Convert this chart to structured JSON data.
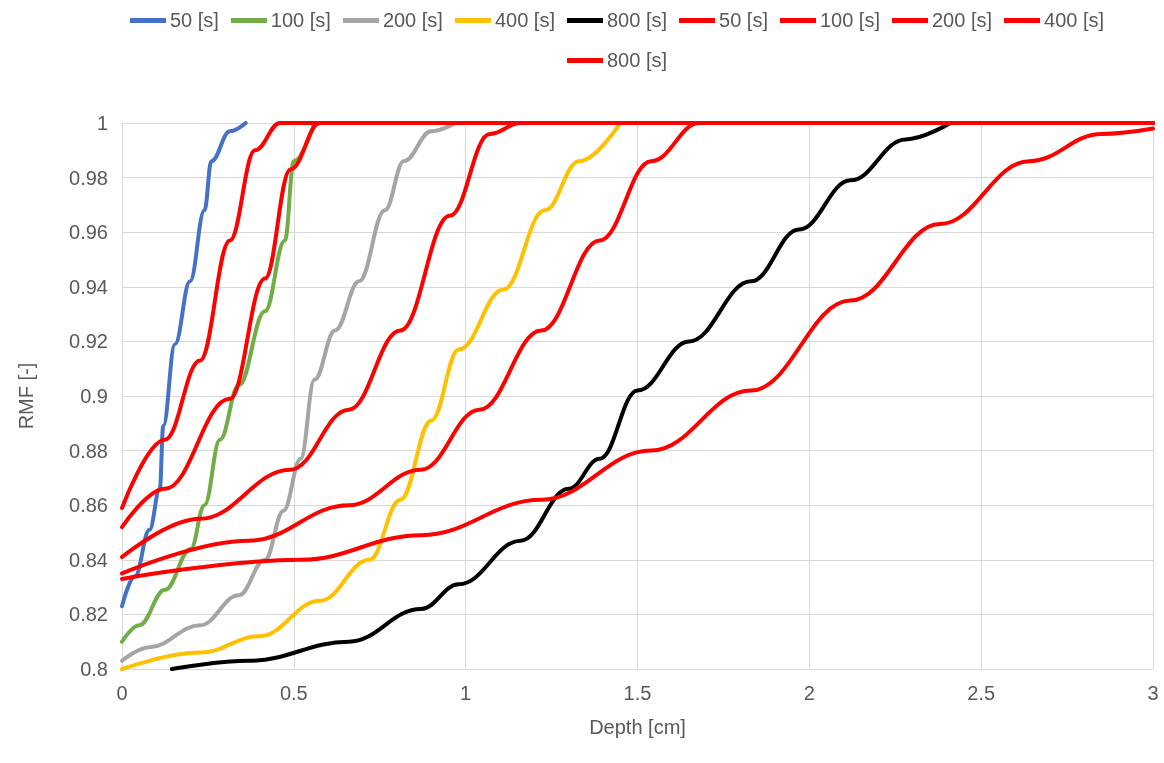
{
  "chart_data": {
    "type": "line",
    "xlabel": "Depth [cm]",
    "ylabel": "RMF [-]",
    "xlim": [
      0,
      3
    ],
    "xticks": [
      0,
      0.5,
      1,
      1.5,
      2,
      2.5,
      3
    ],
    "ylim": [
      0.8,
      1
    ],
    "yticks": [
      0.8,
      0.82,
      0.84,
      0.86,
      0.88,
      0.9,
      0.92,
      0.94,
      0.96,
      0.98,
      1
    ],
    "grid": true,
    "legend": "top",
    "marker": "none",
    "line_style": "solid",
    "series": [
      {
        "name": "50 [s]",
        "color": "#4472c4",
        "x": [
          0,
          0.038,
          0.08,
          0.11,
          0.12,
          0.154,
          0.198,
          0.24,
          0.26,
          0.314,
          0.36
        ],
        "values": [
          0.823,
          0.834,
          0.851,
          0.866,
          0.889,
          0.919,
          0.942,
          0.968,
          0.986,
          0.997,
          1
        ]
      },
      {
        "name": "100 [s]",
        "color": "#70ad47",
        "x": [
          0,
          0.05,
          0.125,
          0.2,
          0.24,
          0.285,
          0.34,
          0.416,
          0.474,
          0.5,
          0.56
        ],
        "values": [
          0.81,
          0.816,
          0.829,
          0.844,
          0.86,
          0.884,
          0.904,
          0.931,
          0.957,
          0.986,
          1
        ]
      },
      {
        "name": "200 [s]",
        "color": "#a5a5a5",
        "x": [
          0,
          0.08,
          0.227,
          0.34,
          0.416,
          0.47,
          0.52,
          0.56,
          0.62,
          0.69,
          0.765,
          0.82,
          0.9,
          0.97
        ],
        "values": [
          0.803,
          0.808,
          0.816,
          0.827,
          0.84,
          0.858,
          0.877,
          0.906,
          0.924,
          0.942,
          0.968,
          0.986,
          0.997,
          1
        ]
      },
      {
        "name": "400 [s]",
        "color": "#ffc000",
        "x": [
          0,
          0.227,
          0.4,
          0.576,
          0.72,
          0.81,
          0.9,
          0.98,
          1.11,
          1.23,
          1.33,
          1.45
        ],
        "values": [
          0.8,
          0.806,
          0.812,
          0.825,
          0.84,
          0.862,
          0.891,
          0.917,
          0.939,
          0.968,
          0.986,
          1
        ]
      },
      {
        "name": "800 [s]",
        "color": "#000000",
        "x": [
          0.145,
          0.37,
          0.66,
          0.87,
          0.98,
          1.16,
          1.3,
          1.39,
          1.5,
          1.65,
          1.83,
          1.97,
          2.12,
          2.28,
          2.41
        ],
        "values": [
          0.8,
          0.803,
          0.81,
          0.822,
          0.831,
          0.847,
          0.866,
          0.877,
          0.902,
          0.92,
          0.942,
          0.961,
          0.979,
          0.994,
          1
        ]
      },
      {
        "name": "50 [s]",
        "color": "#ff0000",
        "x": [
          0,
          0.125,
          0.227,
          0.314,
          0.387,
          0.46,
          3
        ],
        "values": [
          0.859,
          0.884,
          0.913,
          0.957,
          0.99,
          1,
          1
        ]
      },
      {
        "name": "100 [s]",
        "color": "#ff0000",
        "x": [
          0,
          0.125,
          0.314,
          0.416,
          0.49,
          0.576,
          3
        ],
        "values": [
          0.852,
          0.866,
          0.899,
          0.943,
          0.983,
          1,
          1
        ]
      },
      {
        "name": "200 [s]",
        "color": "#ff0000",
        "x": [
          0,
          0.227,
          0.49,
          0.66,
          0.81,
          0.954,
          1.07,
          1.16,
          3
        ],
        "values": [
          0.841,
          0.855,
          0.873,
          0.895,
          0.924,
          0.966,
          0.996,
          1,
          1
        ]
      },
      {
        "name": "400 [s]",
        "color": "#ff0000",
        "x": [
          0,
          0.37,
          0.66,
          0.87,
          1.04,
          1.22,
          1.39,
          1.54,
          1.68,
          3
        ],
        "values": [
          0.835,
          0.847,
          0.86,
          0.873,
          0.895,
          0.924,
          0.957,
          0.986,
          1,
          1
        ]
      },
      {
        "name": "800 [s]",
        "color": "#ff0000",
        "x": [
          0,
          0.52,
          0.87,
          1.22,
          1.54,
          1.83,
          2.12,
          2.38,
          2.64,
          2.85,
          3
        ],
        "values": [
          0.833,
          0.84,
          0.849,
          0.862,
          0.88,
          0.902,
          0.935,
          0.963,
          0.986,
          0.996,
          0.998
        ]
      }
    ]
  }
}
